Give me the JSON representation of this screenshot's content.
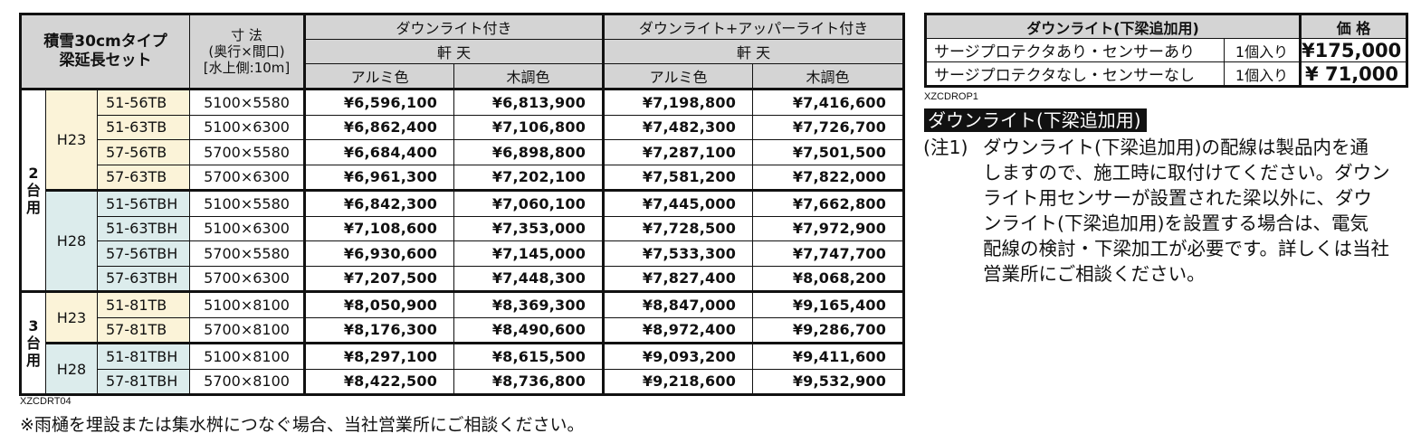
{
  "main_table": {
    "corner_title_line1": "積雪30cmタイプ",
    "corner_title_line2": "梁延長セット",
    "dim_header_line1": "寸 法",
    "dim_header_line2": "(奥行×間口)",
    "dim_header_line3": "[水上側:10m]",
    "group_a": "ダウンライト付き",
    "group_b": "ダウンライト+アッパーライト付き",
    "roof_a": "軒 天",
    "roof_b": "軒 天",
    "col_alu": "アルミ色",
    "col_wood": "木調色",
    "sections": [
      {
        "label": "2台用",
        "heights": [
          {
            "height": "H23",
            "rows": [
              {
                "model": "51-56TB",
                "size": "5100×5580",
                "prices": [
                  "¥6,596,100",
                  "¥6,813,900",
                  "¥7,198,800",
                  "¥7,416,600"
                ]
              },
              {
                "model": "51-63TB",
                "size": "5100×6300",
                "prices": [
                  "¥6,862,400",
                  "¥7,106,800",
                  "¥7,482,300",
                  "¥7,726,700"
                ]
              },
              {
                "model": "57-56TB",
                "size": "5700×5580",
                "prices": [
                  "¥6,684,400",
                  "¥6,898,800",
                  "¥7,287,100",
                  "¥7,501,500"
                ]
              },
              {
                "model": "57-63TB",
                "size": "5700×6300",
                "prices": [
                  "¥6,961,300",
                  "¥7,202,100",
                  "¥7,581,200",
                  "¥7,822,000"
                ]
              }
            ]
          },
          {
            "height": "H28",
            "rows": [
              {
                "model": "51-56TBH",
                "size": "5100×5580",
                "prices": [
                  "¥6,842,300",
                  "¥7,060,100",
                  "¥7,445,000",
                  "¥7,662,800"
                ]
              },
              {
                "model": "51-63TBH",
                "size": "5100×6300",
                "prices": [
                  "¥7,108,600",
                  "¥7,353,000",
                  "¥7,728,500",
                  "¥7,972,900"
                ]
              },
              {
                "model": "57-56TBH",
                "size": "5700×5580",
                "prices": [
                  "¥6,930,600",
                  "¥7,145,000",
                  "¥7,533,300",
                  "¥7,747,700"
                ]
              },
              {
                "model": "57-63TBH",
                "size": "5700×6300",
                "prices": [
                  "¥7,207,500",
                  "¥7,448,300",
                  "¥7,827,400",
                  "¥8,068,200"
                ]
              }
            ]
          }
        ]
      },
      {
        "label": "3台用",
        "heights": [
          {
            "height": "H23",
            "rows": [
              {
                "model": "51-81TB",
                "size": "5100×8100",
                "prices": [
                  "¥8,050,900",
                  "¥8,369,300",
                  "¥8,847,000",
                  "¥9,165,400"
                ]
              },
              {
                "model": "57-81TB",
                "size": "5700×8100",
                "prices": [
                  "¥8,176,300",
                  "¥8,490,600",
                  "¥8,972,400",
                  "¥9,286,700"
                ]
              }
            ]
          },
          {
            "height": "H28",
            "rows": [
              {
                "model": "51-81TBH",
                "size": "5100×8100",
                "prices": [
                  "¥8,297,100",
                  "¥8,615,500",
                  "¥9,093,200",
                  "¥9,411,600"
                ]
              },
              {
                "model": "57-81TBH",
                "size": "5700×8100",
                "prices": [
                  "¥8,422,500",
                  "¥8,736,800",
                  "¥9,218,600",
                  "¥9,532,900"
                ]
              }
            ]
          }
        ]
      }
    ],
    "code": "XZCDRT04"
  },
  "footnote": "※雨樋を埋設または集水桝につなぐ場合、当社営業所にご相談ください。",
  "side_table": {
    "header_item": "ダウンライト(下梁追加用)",
    "header_price": "価 格",
    "rows": [
      {
        "item": "サージプロテクタあり・センサーあり",
        "qty": "1個入り",
        "price": "¥175,000"
      },
      {
        "item": "サージプロテクタなし・センサーなし",
        "qty": "1個入り",
        "price": "¥ 71,000"
      }
    ],
    "code": "XZCDROP1"
  },
  "downlight_note": {
    "title": "ダウンライト(下梁追加用)",
    "label": "(注1)",
    "text": "ダウンライト(下梁追加用)の配線は製品内を通\nしますので、施工時に取付けてください。ダウン\nライト用センサーが設置された梁以外に、ダウ\nンライト(下梁追加用)を設置する場合は、電気\n配線の検討・下梁加工が必要です。詳しくは当社\n営業所にご相談ください。"
  }
}
